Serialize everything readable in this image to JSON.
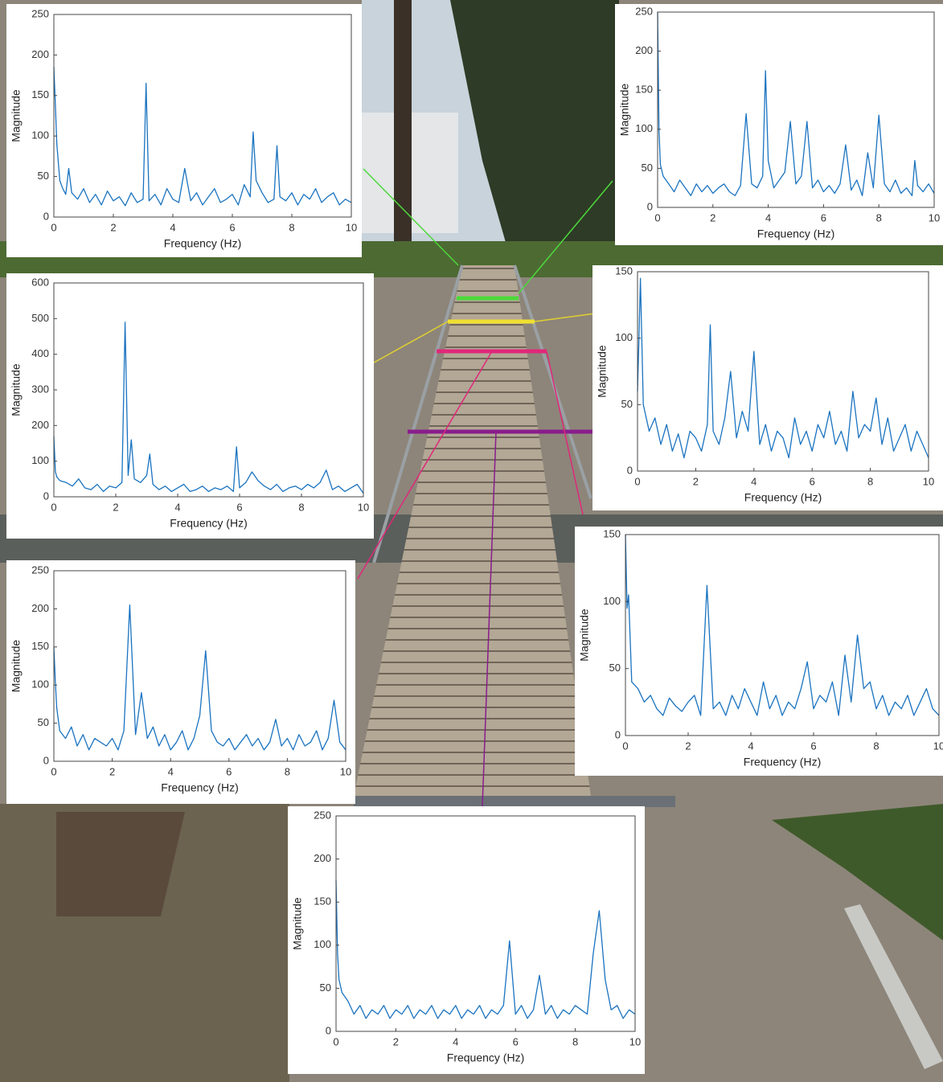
{
  "chart_data": [
    {
      "type": "line",
      "xlabel": "Frequency (Hz)",
      "ylabel": "Magnitude",
      "xlim": [
        0,
        10
      ],
      "ylim": [
        0,
        250
      ],
      "xticks": [
        0,
        2,
        4,
        6,
        8,
        10
      ],
      "yticks": [
        0,
        50,
        100,
        150,
        200,
        250
      ],
      "color": "#1a73c0",
      "x": [
        0,
        0.05,
        0.1,
        0.2,
        0.3,
        0.4,
        0.5,
        0.6,
        0.8,
        1,
        1.2,
        1.4,
        1.6,
        1.8,
        2,
        2.2,
        2.4,
        2.6,
        2.8,
        3,
        3.1,
        3.2,
        3.4,
        3.6,
        3.8,
        4,
        4.2,
        4.4,
        4.6,
        4.8,
        5,
        5.2,
        5.4,
        5.6,
        5.8,
        6,
        6.2,
        6.4,
        6.6,
        6.7,
        6.8,
        7,
        7.2,
        7.4,
        7.5,
        7.6,
        7.8,
        8,
        8.2,
        8.4,
        8.6,
        8.8,
        9,
        9.2,
        9.4,
        9.6,
        9.8,
        10
      ],
      "values": [
        185,
        140,
        90,
        45,
        35,
        28,
        60,
        30,
        22,
        35,
        18,
        28,
        15,
        32,
        20,
        25,
        14,
        30,
        18,
        22,
        165,
        20,
        28,
        15,
        35,
        22,
        18,
        60,
        20,
        30,
        15,
        25,
        35,
        18,
        22,
        28,
        15,
        40,
        25,
        105,
        45,
        30,
        18,
        22,
        88,
        25,
        20,
        30,
        15,
        28,
        22,
        35,
        18,
        25,
        30,
        15,
        22,
        18
      ]
    },
    {
      "type": "line",
      "xlabel": "Frequency (Hz)",
      "ylabel": "Magnitude",
      "xlim": [
        0,
        10
      ],
      "ylim": [
        0,
        250
      ],
      "xticks": [
        0,
        2,
        4,
        6,
        8,
        10
      ],
      "yticks": [
        0,
        50,
        100,
        150,
        200,
        250
      ],
      "color": "#1a73c0",
      "x": [
        0,
        0.05,
        0.1,
        0.2,
        0.4,
        0.6,
        0.8,
        1,
        1.2,
        1.4,
        1.6,
        1.8,
        2,
        2.2,
        2.4,
        2.6,
        2.8,
        3,
        3.2,
        3.4,
        3.6,
        3.8,
        3.9,
        4,
        4.2,
        4.4,
        4.6,
        4.8,
        5,
        5.2,
        5.4,
        5.6,
        5.8,
        6,
        6.2,
        6.4,
        6.6,
        6.8,
        7,
        7.2,
        7.4,
        7.6,
        7.8,
        8,
        8.2,
        8.4,
        8.6,
        8.8,
        9,
        9.2,
        9.3,
        9.4,
        9.6,
        9.8,
        10
      ],
      "values": [
        250,
        100,
        55,
        40,
        30,
        20,
        35,
        25,
        15,
        30,
        20,
        28,
        18,
        25,
        30,
        20,
        15,
        28,
        120,
        30,
        25,
        40,
        175,
        60,
        25,
        35,
        45,
        110,
        30,
        40,
        110,
        25,
        35,
        20,
        28,
        18,
        30,
        80,
        22,
        35,
        15,
        70,
        25,
        118,
        30,
        20,
        35,
        18,
        25,
        15,
        60,
        28,
        20,
        30,
        18
      ]
    },
    {
      "type": "line",
      "xlabel": "Frequency (Hz)",
      "ylabel": "Magnitude",
      "xlim": [
        0,
        10
      ],
      "ylim": [
        0,
        600
      ],
      "xticks": [
        0,
        2,
        4,
        6,
        8,
        10
      ],
      "yticks": [
        0,
        100,
        200,
        300,
        400,
        500,
        600
      ],
      "color": "#1a73c0",
      "x": [
        0,
        0.05,
        0.1,
        0.2,
        0.4,
        0.6,
        0.8,
        1,
        1.2,
        1.4,
        1.6,
        1.8,
        2,
        2.2,
        2.3,
        2.4,
        2.5,
        2.6,
        2.8,
        3,
        3.1,
        3.2,
        3.4,
        3.6,
        3.8,
        4,
        4.2,
        4.4,
        4.6,
        4.8,
        5,
        5.2,
        5.4,
        5.6,
        5.8,
        5.9,
        6,
        6.2,
        6.4,
        6.6,
        6.8,
        7,
        7.2,
        7.4,
        7.6,
        7.8,
        8,
        8.2,
        8.4,
        8.6,
        8.8,
        9,
        9.2,
        9.4,
        9.6,
        9.8,
        10
      ],
      "values": [
        170,
        70,
        55,
        45,
        40,
        30,
        50,
        25,
        20,
        35,
        15,
        30,
        25,
        40,
        490,
        60,
        160,
        50,
        40,
        60,
        120,
        35,
        20,
        30,
        15,
        25,
        35,
        15,
        20,
        30,
        15,
        25,
        20,
        30,
        15,
        140,
        25,
        40,
        70,
        45,
        30,
        20,
        35,
        15,
        25,
        30,
        20,
        35,
        25,
        40,
        75,
        20,
        30,
        15,
        25,
        35,
        10
      ]
    },
    {
      "type": "line",
      "xlabel": "Frequency (Hz)",
      "ylabel": "Magnitude",
      "xlim": [
        0,
        10
      ],
      "ylim": [
        0,
        150
      ],
      "xticks": [
        0,
        2,
        4,
        6,
        8,
        10
      ],
      "yticks": [
        0,
        50,
        100,
        150
      ],
      "color": "#1a73c0",
      "x": [
        0,
        0.05,
        0.1,
        0.2,
        0.4,
        0.6,
        0.8,
        1,
        1.2,
        1.4,
        1.6,
        1.8,
        2,
        2.2,
        2.4,
        2.5,
        2.6,
        2.8,
        3,
        3.2,
        3.4,
        3.6,
        3.8,
        4,
        4.2,
        4.4,
        4.6,
        4.8,
        5,
        5.2,
        5.4,
        5.6,
        5.8,
        6,
        6.2,
        6.4,
        6.6,
        6.8,
        7,
        7.2,
        7.4,
        7.6,
        7.8,
        8,
        8.2,
        8.4,
        8.6,
        8.8,
        9,
        9.2,
        9.4,
        9.6,
        9.8,
        10
      ],
      "values": [
        60,
        100,
        145,
        50,
        30,
        40,
        20,
        35,
        15,
        28,
        10,
        30,
        25,
        15,
        35,
        110,
        30,
        20,
        40,
        75,
        25,
        45,
        30,
        90,
        20,
        35,
        15,
        30,
        25,
        10,
        40,
        20,
        30,
        15,
        35,
        25,
        45,
        20,
        30,
        15,
        60,
        25,
        35,
        30,
        55,
        20,
        40,
        15,
        25,
        35,
        15,
        30,
        20,
        10
      ]
    },
    {
      "type": "line",
      "xlabel": "Frequency (Hz)",
      "ylabel": "Magnitude",
      "xlim": [
        0,
        10
      ],
      "ylim": [
        0,
        250
      ],
      "xticks": [
        0,
        2,
        4,
        6,
        8,
        10
      ],
      "yticks": [
        0,
        50,
        100,
        150,
        200,
        250
      ],
      "color": "#1a73c0",
      "x": [
        0,
        0.05,
        0.1,
        0.2,
        0.4,
        0.6,
        0.8,
        1,
        1.2,
        1.4,
        1.6,
        1.8,
        2,
        2.2,
        2.4,
        2.6,
        2.8,
        3,
        3.2,
        3.4,
        3.6,
        3.8,
        4,
        4.2,
        4.4,
        4.6,
        4.8,
        5,
        5.2,
        5.4,
        5.6,
        5.8,
        6,
        6.2,
        6.4,
        6.6,
        6.8,
        7,
        7.2,
        7.4,
        7.6,
        7.8,
        8,
        8.2,
        8.4,
        8.6,
        8.8,
        9,
        9.2,
        9.4,
        9.6,
        9.8,
        10
      ],
      "values": [
        150,
        105,
        70,
        40,
        30,
        45,
        20,
        35,
        15,
        30,
        25,
        20,
        30,
        15,
        40,
        205,
        35,
        90,
        30,
        45,
        20,
        35,
        15,
        25,
        40,
        15,
        30,
        60,
        145,
        40,
        25,
        20,
        30,
        15,
        25,
        35,
        20,
        30,
        15,
        25,
        55,
        20,
        30,
        15,
        35,
        20,
        25,
        40,
        15,
        30,
        80,
        25,
        15
      ]
    },
    {
      "type": "line",
      "xlabel": "Frequency (Hz)",
      "ylabel": "Magnitude",
      "xlim": [
        0,
        10
      ],
      "ylim": [
        0,
        150
      ],
      "xticks": [
        0,
        2,
        4,
        6,
        8,
        10
      ],
      "yticks": [
        0,
        50,
        100,
        150
      ],
      "color": "#1a73c0",
      "x": [
        0,
        0.05,
        0.1,
        0.2,
        0.4,
        0.6,
        0.8,
        1,
        1.2,
        1.4,
        1.6,
        1.8,
        2,
        2.2,
        2.4,
        2.6,
        2.8,
        3,
        3.2,
        3.4,
        3.6,
        3.8,
        4,
        4.2,
        4.4,
        4.6,
        4.8,
        5,
        5.2,
        5.4,
        5.6,
        5.8,
        6,
        6.2,
        6.4,
        6.6,
        6.8,
        7,
        7.2,
        7.4,
        7.6,
        7.8,
        8,
        8.2,
        8.4,
        8.6,
        8.8,
        9,
        9.2,
        9.4,
        9.6,
        9.8,
        10
      ],
      "values": [
        150,
        95,
        105,
        40,
        35,
        25,
        30,
        20,
        15,
        28,
        22,
        18,
        25,
        30,
        15,
        112,
        20,
        25,
        15,
        30,
        20,
        35,
        25,
        15,
        40,
        20,
        30,
        15,
        25,
        20,
        35,
        55,
        20,
        30,
        25,
        40,
        15,
        60,
        25,
        75,
        35,
        40,
        20,
        30,
        15,
        25,
        20,
        30,
        15,
        25,
        35,
        20,
        15
      ]
    },
    {
      "type": "line",
      "xlabel": "Frequency (Hz)",
      "ylabel": "Magnitude",
      "xlim": [
        0,
        10
      ],
      "ylim": [
        0,
        250
      ],
      "xticks": [
        0,
        2,
        4,
        6,
        8,
        10
      ],
      "yticks": [
        0,
        50,
        100,
        150,
        200,
        250
      ],
      "color": "#1a73c0",
      "x": [
        0,
        0.05,
        0.1,
        0.2,
        0.4,
        0.6,
        0.8,
        1,
        1.2,
        1.4,
        1.6,
        1.8,
        2,
        2.2,
        2.4,
        2.6,
        2.8,
        3,
        3.2,
        3.4,
        3.6,
        3.8,
        4,
        4.2,
        4.4,
        4.6,
        4.8,
        5,
        5.2,
        5.4,
        5.6,
        5.8,
        6,
        6.2,
        6.4,
        6.6,
        6.8,
        7,
        7.2,
        7.4,
        7.6,
        7.8,
        8,
        8.2,
        8.4,
        8.6,
        8.8,
        9,
        9.2,
        9.4,
        9.6,
        9.8,
        10
      ],
      "values": [
        175,
        90,
        60,
        45,
        35,
        20,
        30,
        15,
        25,
        20,
        30,
        15,
        25,
        20,
        30,
        15,
        25,
        20,
        30,
        15,
        25,
        20,
        30,
        15,
        25,
        20,
        30,
        15,
        25,
        20,
        30,
        105,
        20,
        30,
        15,
        25,
        65,
        20,
        30,
        15,
        25,
        20,
        30,
        25,
        20,
        90,
        140,
        60,
        25,
        30,
        15,
        25,
        20
      ]
    }
  ]
}
